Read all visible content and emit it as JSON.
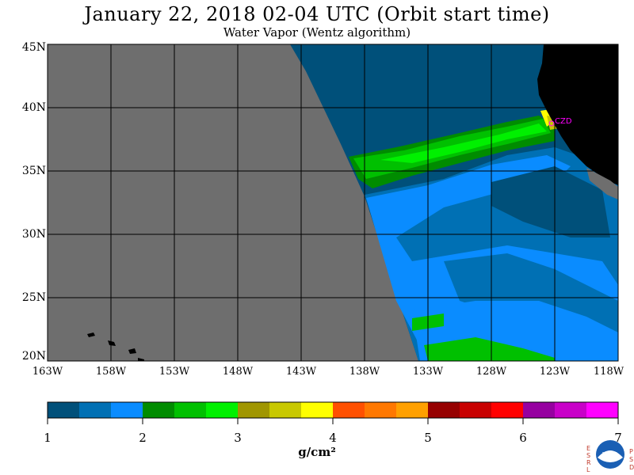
{
  "title": "January 22, 2018  02-04 UTC  (Orbit start time)",
  "subtitle": "Water Vapor (Wentz algorithm)",
  "map": {
    "lat_labels": [
      "45N",
      "40N",
      "35N",
      "30N",
      "25N",
      "20N"
    ],
    "lon_labels": [
      "163W",
      "158W",
      "153W",
      "148W",
      "143W",
      "138W",
      "133W",
      "128W",
      "123W",
      "118W"
    ],
    "annotation": "CZD",
    "land_color": "#000000",
    "nodata_color": "#6e6e6e",
    "annotation_color": "#ff00ff"
  },
  "colorbar": {
    "ticks": [
      "1",
      "2",
      "3",
      "4",
      "5",
      "6",
      "7"
    ],
    "units": "g/cm²",
    "colors": [
      "#00507a",
      "#0070b4",
      "#0a8cff",
      "#008c00",
      "#00c000",
      "#00f000",
      "#a09600",
      "#c8c800",
      "#ffff00",
      "#ff5000",
      "#ff7800",
      "#ffa000",
      "#960000",
      "#c80000",
      "#ff0000",
      "#9600a0",
      "#c800c8",
      "#ff00ff"
    ]
  },
  "logo": {
    "left_letters": [
      "E",
      "S",
      "R",
      "L"
    ],
    "right_letters": [
      "P",
      "S",
      "D"
    ],
    "center_text": "NOAA"
  }
}
